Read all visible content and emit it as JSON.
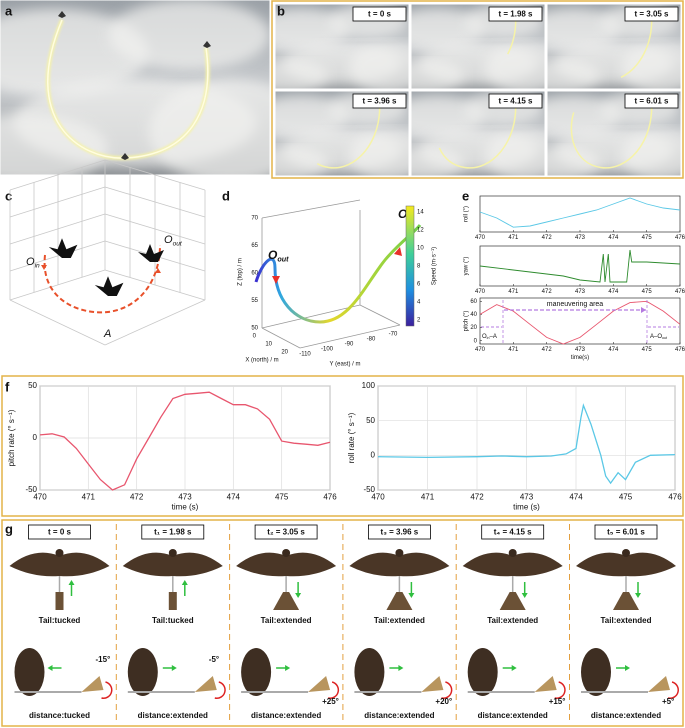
{
  "panels": {
    "a": "a",
    "b": "b",
    "c": "c",
    "d": "d",
    "e": "e",
    "f": "f",
    "g": "g"
  },
  "b_frames": [
    "t = 0 s",
    "t = 1.98 s",
    "t = 3.05 s",
    "t = 3.96 s",
    "t = 4.15 s",
    "t = 6.01 s"
  ],
  "c": {
    "o_in": {
      "main": "O",
      "sub": "in"
    },
    "o_out": {
      "main": "O",
      "sub": "out"
    },
    "a": "A"
  },
  "d": {
    "o_in": {
      "main": "O",
      "sub": "in"
    },
    "o_out": {
      "main": "O",
      "sub": "out"
    },
    "z_label": "Z (top) / m",
    "x_label": "X (north) / m",
    "y_label": "Y (east) / m",
    "z_ticks": [
      70,
      65,
      60,
      55,
      50
    ],
    "x_ticks": [
      0,
      10,
      20
    ],
    "y_ticks": [
      -110,
      -100,
      -90,
      -80,
      -70
    ],
    "colorbar_label": "Speed (m·s⁻¹)",
    "colorbar_ticks": [
      14,
      12,
      10,
      8,
      6,
      4,
      2
    ]
  },
  "e": {
    "maneuver": "maneuvering area",
    "seg_in": {
      "main": "O",
      "sub": "in",
      "rest": "–A"
    },
    "seg_out": {
      "main": "A–O",
      "sub": "out"
    }
  },
  "chart_data": [
    {
      "type": "line",
      "ylabel": "pitch rate (° s⁻¹)",
      "xlabel": "time (s)",
      "grid": true,
      "xlim": [
        470,
        476
      ],
      "ylim": [
        -50,
        50
      ],
      "xticks": [
        470,
        471,
        472,
        473,
        474,
        475,
        476
      ],
      "yticks": [
        -50,
        0,
        50
      ],
      "x": [
        470,
        470.25,
        470.5,
        470.75,
        471,
        471.25,
        471.5,
        471.75,
        472,
        472.25,
        472.5,
        472.75,
        473,
        473.25,
        473.5,
        473.75,
        474,
        474.25,
        474.5,
        474.75,
        475,
        475.25,
        475.5,
        475.75,
        476
      ],
      "series": [
        {
          "color": "#e8566e",
          "values": [
            3,
            4,
            1,
            -10,
            -25,
            -40,
            -50,
            -45,
            -20,
            0,
            20,
            38,
            42,
            43,
            44,
            38,
            32,
            32,
            28,
            18,
            -3,
            -5,
            -6,
            -7,
            -4
          ]
        }
      ]
    },
    {
      "type": "line",
      "ylabel": "roll rate (° s⁻¹)",
      "xlabel": "time (s)",
      "grid": true,
      "xlim": [
        470,
        476
      ],
      "ylim": [
        -50,
        100
      ],
      "xticks": [
        470,
        471,
        472,
        473,
        474,
        475,
        476
      ],
      "yticks": [
        -50,
        0,
        50,
        100
      ],
      "x": [
        470,
        471,
        472,
        472.5,
        473,
        473.5,
        473.8,
        474,
        474.1,
        474.15,
        474.3,
        474.5,
        474.6,
        474.7,
        474.85,
        475,
        475.2,
        475.5,
        476
      ],
      "series": [
        {
          "color": "#5bc8e6",
          "values": [
            -2,
            -3,
            -2,
            -1,
            -2,
            -1,
            2,
            10,
            55,
            72,
            45,
            0,
            -30,
            -40,
            -25,
            -35,
            -10,
            0,
            1
          ]
        }
      ]
    },
    {
      "type": "line",
      "ylabel": "roll (°)",
      "grid": false,
      "xlim": [
        470,
        476
      ],
      "ylim": [
        -40,
        50
      ],
      "xticks": [
        470,
        471,
        472,
        473,
        474,
        475,
        476
      ],
      "x": [
        470,
        470.5,
        471,
        471.5,
        472,
        472.5,
        473,
        473.5,
        474,
        474.5,
        475,
        475.5,
        476
      ],
      "series": [
        {
          "color": "#5bc8e6",
          "values": [
            10,
            -5,
            -28,
            -25,
            -15,
            -5,
            5,
            15,
            30,
            45,
            30,
            20,
            15
          ]
        }
      ]
    },
    {
      "type": "line",
      "ylabel": "yaw (°)",
      "grid": false,
      "xlim": [
        470,
        476
      ],
      "ylim": [
        -40,
        160
      ],
      "xticks": [
        470,
        471,
        472,
        473,
        474,
        475,
        476
      ],
      "x": [
        470,
        471,
        472,
        472.5,
        473,
        473.6,
        473.7,
        473.75,
        473.85,
        473.9,
        474.4,
        474.5,
        474.55,
        475,
        476
      ],
      "series": [
        {
          "color": "#2e8b2e",
          "values": [
            60,
            40,
            20,
            10,
            -10,
            -20,
            120,
            -20,
            120,
            -20,
            -20,
            140,
            80,
            80,
            70
          ]
        }
      ]
    },
    {
      "type": "line",
      "ylabel": "pitch (°)",
      "xlabel": "time(s)",
      "grid": false,
      "xlim": [
        470,
        476
      ],
      "ylim": [
        -5,
        65
      ],
      "xticks": [
        470,
        471,
        472,
        473,
        474,
        475,
        476
      ],
      "yticks": [
        0,
        20,
        40,
        60
      ],
      "x": [
        470,
        470.5,
        471,
        471.5,
        472,
        472.5,
        473,
        473.5,
        474,
        474.5,
        475,
        475.5,
        476
      ],
      "series": [
        {
          "color": "#e8566e",
          "values": [
            40,
            55,
            45,
            25,
            5,
            -5,
            5,
            25,
            45,
            58,
            60,
            45,
            25
          ]
        }
      ]
    }
  ],
  "g": {
    "columns": [
      {
        "time": "t = 0 s",
        "tail": "Tail:tucked",
        "distance": "distance:tucked",
        "angle": "-15°"
      },
      {
        "time": "t₁ = 1.98 s",
        "tail": "Tail:tucked",
        "distance": "distance:extended",
        "angle": "-5°"
      },
      {
        "time": "t₂ = 3.05 s",
        "tail": "Tail:extended",
        "distance": "distance:extended",
        "angle": "+25°"
      },
      {
        "time": "t₃ = 3.96 s",
        "tail": "Tail:extended",
        "distance": "distance:extended",
        "angle": "+20°"
      },
      {
        "time": "t₄ = 4.15 s",
        "tail": "Tail:extended",
        "distance": "distance:extended",
        "angle": "+15°"
      },
      {
        "time": "t₅ = 6.01 s",
        "tail": "Tail:extended",
        "distance": "distance:extended",
        "angle": "+5°"
      }
    ]
  }
}
